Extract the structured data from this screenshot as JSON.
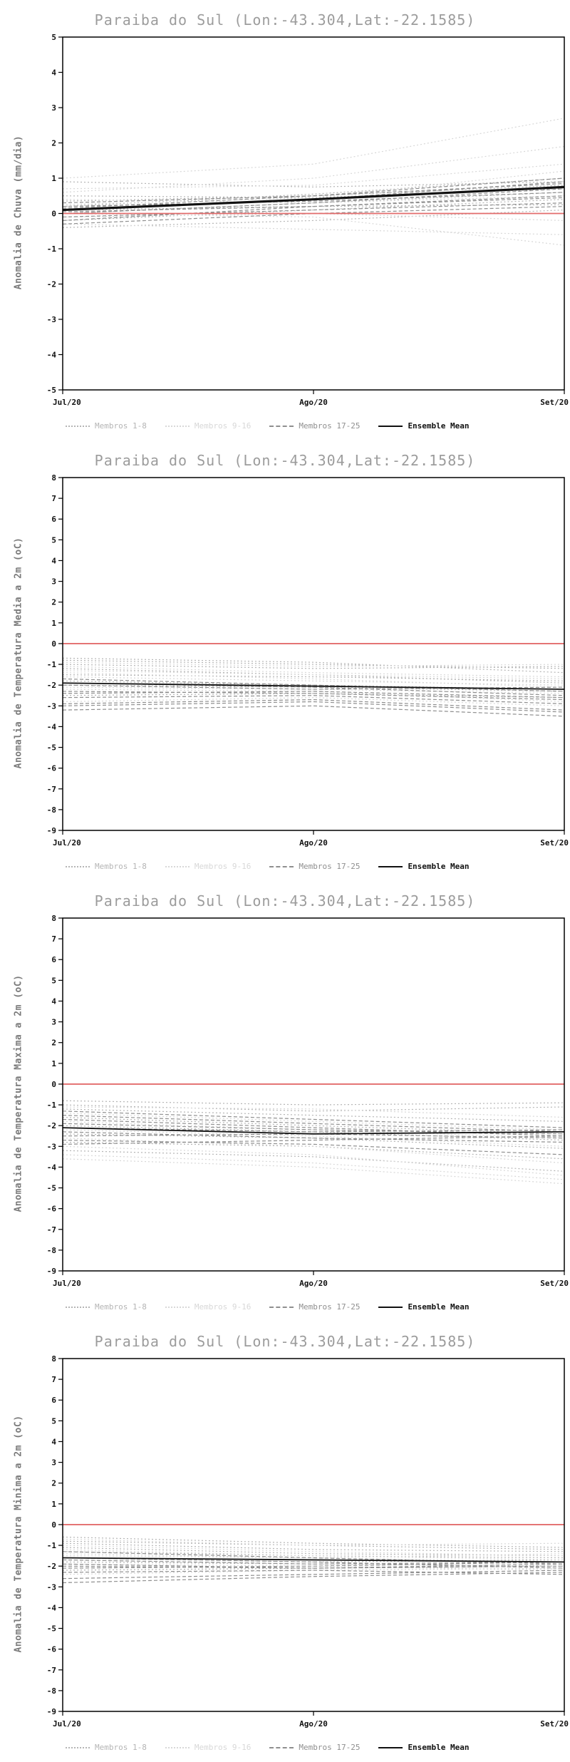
{
  "page": {
    "background": "#ffffff"
  },
  "chart_data": [
    {
      "type": "line",
      "title": "Paraiba do Sul (Lon:-43.304,Lat:-22.1585)",
      "ylabel": "Anomalia de Chuva (mm/dia)",
      "x_ticklabels": [
        "Jul/20",
        "Ago/20",
        "Set/20"
      ],
      "ylim": [
        -5,
        5
      ],
      "ytick_step": 1,
      "grid": false,
      "zero_line": {
        "color": "#e36c6c",
        "values": [
          0,
          0,
          0
        ]
      },
      "ensemble_mean": {
        "label": "Ensemble Mean",
        "color": "#111111",
        "width": 3.2,
        "values": [
          0.1,
          0.4,
          0.75
        ]
      },
      "groups": [
        {
          "name": "Membros 1-8",
          "color": "#b5b5b5",
          "dash": "dotted",
          "members": [
            [
              0.9,
              0.75,
              0.9
            ],
            [
              0.35,
              0.5,
              0.8
            ],
            [
              0.0,
              0.3,
              0.6
            ],
            [
              -0.2,
              0.1,
              0.4
            ],
            [
              0.5,
              0.45,
              0.7
            ],
            [
              0.1,
              0.2,
              0.25
            ],
            [
              -0.4,
              -0.2,
              0.1
            ],
            [
              0.2,
              0.55,
              1.0
            ]
          ]
        },
        {
          "name": "Membros 9-16",
          "color": "#d8d8d8",
          "dash": "dotted",
          "members": [
            [
              1.0,
              1.4,
              2.7
            ],
            [
              0.6,
              1.0,
              1.9
            ],
            [
              0.25,
              0.45,
              1.2
            ],
            [
              -0.1,
              0.0,
              -0.2
            ],
            [
              -0.3,
              -0.45,
              -0.6
            ],
            [
              0.4,
              0.3,
              0.5
            ],
            [
              0.0,
              -0.1,
              -0.9
            ],
            [
              0.7,
              0.8,
              1.4
            ]
          ]
        },
        {
          "name": "Membros 17-25",
          "color": "#8f8f8f",
          "dash": "dashed",
          "members": [
            [
              0.0,
              0.3,
              0.7
            ],
            [
              0.1,
              0.4,
              0.9
            ],
            [
              -0.2,
              0.2,
              0.5
            ],
            [
              0.2,
              0.35,
              0.6
            ],
            [
              -0.1,
              0.1,
              0.3
            ],
            [
              0.3,
              0.5,
              1.0
            ],
            [
              0.05,
              0.2,
              0.45
            ],
            [
              -0.3,
              0.0,
              0.2
            ],
            [
              0.15,
              0.5,
              0.85
            ]
          ]
        }
      ],
      "legend": [
        {
          "label": "Membros 1-8",
          "color": "#b5b5b5",
          "dash": "dotted"
        },
        {
          "label": "Membros 9-16",
          "color": "#d8d8d8",
          "dash": "dotted"
        },
        {
          "label": "Membros 17-25",
          "color": "#8f8f8f",
          "dash": "dashed"
        },
        {
          "label": "Ensemble Mean",
          "color": "#111111",
          "dash": "solid"
        }
      ]
    },
    {
      "type": "line",
      "title": "Paraiba do Sul (Lon:-43.304,Lat:-22.1585)",
      "ylabel": "Anomalia de Temperatura Media a 2m (oC)",
      "x_ticklabels": [
        "Jul/20",
        "Ago/20",
        "Set/20"
      ],
      "ylim": [
        -9,
        8
      ],
      "ytick_step": 1,
      "grid": false,
      "zero_line": {
        "color": "#e36c6c",
        "values": [
          0,
          0,
          0
        ]
      },
      "ensemble_mean": {
        "label": "Ensemble Mean",
        "color": "#111111",
        "width": 1.8,
        "values": [
          -1.9,
          -2.05,
          -2.2
        ]
      },
      "groups": [
        {
          "name": "Membros 1-8",
          "color": "#b5b5b5",
          "dash": "dotted",
          "members": [
            [
              -1.0,
              -1.2,
              -1.1
            ],
            [
              -1.5,
              -1.6,
              -1.8
            ],
            [
              -2.0,
              -2.1,
              -2.3
            ],
            [
              -0.8,
              -1.0,
              -1.2
            ],
            [
              -2.5,
              -2.4,
              -2.6
            ],
            [
              -1.2,
              -1.5,
              -1.9
            ],
            [
              -1.8,
              -2.0,
              -2.2
            ],
            [
              -0.7,
              -0.9,
              -1.4
            ]
          ]
        },
        {
          "name": "Membros 9-16",
          "color": "#d8d8d8",
          "dash": "dotted",
          "members": [
            [
              -1.1,
              -1.4,
              -1.6
            ],
            [
              -2.2,
              -2.3,
              -2.8
            ],
            [
              -1.6,
              -1.8,
              -2.0
            ],
            [
              -0.9,
              -1.1,
              -1.0
            ],
            [
              -2.8,
              -2.6,
              -3.0
            ],
            [
              -1.4,
              -1.7,
              -2.1
            ],
            [
              -2.1,
              -2.2,
              -2.4
            ],
            [
              -1.3,
              -1.5,
              -1.7
            ]
          ]
        },
        {
          "name": "Membros 17-25",
          "color": "#8f8f8f",
          "dash": "dashed",
          "members": [
            [
              -3.0,
              -2.8,
              -3.3
            ],
            [
              -2.6,
              -2.5,
              -2.9
            ],
            [
              -1.9,
              -2.1,
              -2.5
            ],
            [
              -2.3,
              -2.4,
              -2.7
            ],
            [
              -3.2,
              -3.0,
              -3.5
            ],
            [
              -1.7,
              -2.0,
              -2.3
            ],
            [
              -2.4,
              -2.3,
              -2.6
            ],
            [
              -2.0,
              -2.2,
              -2.1
            ],
            [
              -2.9,
              -2.7,
              -3.2
            ]
          ]
        }
      ],
      "legend": [
        {
          "label": "Membros 1-8",
          "color": "#b5b5b5",
          "dash": "dotted"
        },
        {
          "label": "Membros 9-16",
          "color": "#d8d8d8",
          "dash": "dotted"
        },
        {
          "label": "Membros 17-25",
          "color": "#8f8f8f",
          "dash": "dashed"
        },
        {
          "label": "Ensemble Mean",
          "color": "#111111",
          "dash": "solid"
        }
      ]
    },
    {
      "type": "line",
      "title": "Paraiba do Sul (Lon:-43.304,Lat:-22.1585)",
      "ylabel": "Anomalia de Temperatura Maxima a 2m (oC)",
      "x_ticklabels": [
        "Jul/20",
        "Ago/20",
        "Set/20"
      ],
      "ylim": [
        -9,
        8
      ],
      "ytick_step": 1,
      "grid": false,
      "zero_line": {
        "color": "#e36c6c",
        "values": [
          0,
          0,
          0
        ]
      },
      "ensemble_mean": {
        "label": "Ensemble Mean",
        "color": "#111111",
        "width": 1.8,
        "values": [
          -2.1,
          -2.4,
          -2.3
        ]
      },
      "groups": [
        {
          "name": "Membros 1-8",
          "color": "#b5b5b5",
          "dash": "dotted",
          "members": [
            [
              -1.2,
              -1.5,
              -1.8
            ],
            [
              -2.0,
              -2.3,
              -2.7
            ],
            [
              -2.8,
              -3.0,
              -3.6
            ],
            [
              -1.0,
              -1.3,
              -1.1
            ],
            [
              -3.2,
              -3.5,
              -4.2
            ],
            [
              -1.6,
              -2.0,
              -2.4
            ],
            [
              -2.4,
              -2.6,
              -3.1
            ],
            [
              -0.8,
              -1.0,
              -0.9
            ]
          ]
        },
        {
          "name": "Membros 9-16",
          "color": "#d8d8d8",
          "dash": "dotted",
          "members": [
            [
              -1.4,
              -1.8,
              -2.2
            ],
            [
              -2.6,
              -3.0,
              -3.8
            ],
            [
              -3.4,
              -3.8,
              -4.6
            ],
            [
              -1.1,
              -1.2,
              -1.6
            ],
            [
              -3.6,
              -4.0,
              -4.8
            ],
            [
              -1.8,
              -2.2,
              -2.6
            ],
            [
              -2.2,
              -2.5,
              -3.0
            ],
            [
              -3.0,
              -3.4,
              -4.4
            ]
          ]
        },
        {
          "name": "Membros 17-25",
          "color": "#8f8f8f",
          "dash": "dashed",
          "members": [
            [
              -2.1,
              -2.3,
              -2.2
            ],
            [
              -1.5,
              -1.9,
              -2.3
            ],
            [
              -2.5,
              -2.4,
              -2.6
            ],
            [
              -1.9,
              -2.2,
              -2.4
            ],
            [
              -2.9,
              -2.7,
              -2.5
            ],
            [
              -1.3,
              -1.7,
              -2.1
            ],
            [
              -2.3,
              -2.6,
              -2.8
            ],
            [
              -1.7,
              -2.1,
              -2.5
            ],
            [
              -2.7,
              -2.9,
              -3.4
            ]
          ]
        }
      ],
      "legend": [
        {
          "label": "Membros 1-8",
          "color": "#b5b5b5",
          "dash": "dotted"
        },
        {
          "label": "Membros 9-16",
          "color": "#d8d8d8",
          "dash": "dotted"
        },
        {
          "label": "Membros 17-25",
          "color": "#8f8f8f",
          "dash": "dashed"
        },
        {
          "label": "Ensemble Mean",
          "color": "#111111",
          "dash": "solid"
        }
      ]
    },
    {
      "type": "line",
      "title": "Paraiba do Sul (Lon:-43.304,Lat:-22.1585)",
      "ylabel": "Anomalia de Temperatura Minima a 2m (oC)",
      "x_ticklabels": [
        "Jul/20",
        "Ago/20",
        "Set/20"
      ],
      "ylim": [
        -9,
        8
      ],
      "ytick_step": 1,
      "grid": false,
      "zero_line": {
        "color": "#e36c6c",
        "values": [
          0,
          0,
          0
        ]
      },
      "ensemble_mean": {
        "label": "Ensemble Mean",
        "color": "#111111",
        "width": 1.8,
        "values": [
          -1.6,
          -1.7,
          -1.8
        ]
      },
      "groups": [
        {
          "name": "Membros 1-8",
          "color": "#b5b5b5",
          "dash": "dotted",
          "members": [
            [
              -0.8,
              -1.0,
              -1.2
            ],
            [
              -1.3,
              -1.5,
              -1.6
            ],
            [
              -1.8,
              -1.9,
              -2.0
            ],
            [
              -0.6,
              -0.9,
              -1.1
            ],
            [
              -2.2,
              -2.1,
              -2.0
            ],
            [
              -1.1,
              -1.4,
              -1.5
            ],
            [
              -1.6,
              -1.8,
              -1.7
            ],
            [
              -0.9,
              -1.2,
              -1.3
            ]
          ]
        },
        {
          "name": "Membros 9-16",
          "color": "#d8d8d8",
          "dash": "dotted",
          "members": [
            [
              -1.0,
              -1.3,
              -1.5
            ],
            [
              -1.9,
              -2.0,
              -2.2
            ],
            [
              -1.4,
              -1.6,
              -1.8
            ],
            [
              -0.7,
              -1.0,
              -0.9
            ],
            [
              -2.4,
              -2.2,
              -2.1
            ],
            [
              -1.2,
              -1.5,
              -1.7
            ],
            [
              -1.7,
              -1.9,
              -2.0
            ],
            [
              -1.5,
              -1.6,
              -1.4
            ]
          ]
        },
        {
          "name": "Membros 17-25",
          "color": "#8f8f8f",
          "dash": "dashed",
          "members": [
            [
              -2.6,
              -2.4,
              -2.2
            ],
            [
              -2.0,
              -2.1,
              -1.9
            ],
            [
              -1.6,
              -1.8,
              -2.1
            ],
            [
              -2.1,
              -2.0,
              -1.8
            ],
            [
              -2.8,
              -2.5,
              -2.3
            ],
            [
              -1.3,
              -1.6,
              -1.9
            ],
            [
              -1.9,
              -2.1,
              -2.0
            ],
            [
              -1.7,
              -1.9,
              -1.8
            ],
            [
              -2.3,
              -2.2,
              -2.4
            ]
          ]
        }
      ],
      "legend": [
        {
          "label": "Membros 1-8",
          "color": "#b5b5b5",
          "dash": "dotted"
        },
        {
          "label": "Membros 9-16",
          "color": "#d8d8d8",
          "dash": "dotted"
        },
        {
          "label": "Membros 17-25",
          "color": "#8f8f8f",
          "dash": "dashed"
        },
        {
          "label": "Ensemble Mean",
          "color": "#111111",
          "dash": "solid"
        }
      ]
    }
  ]
}
